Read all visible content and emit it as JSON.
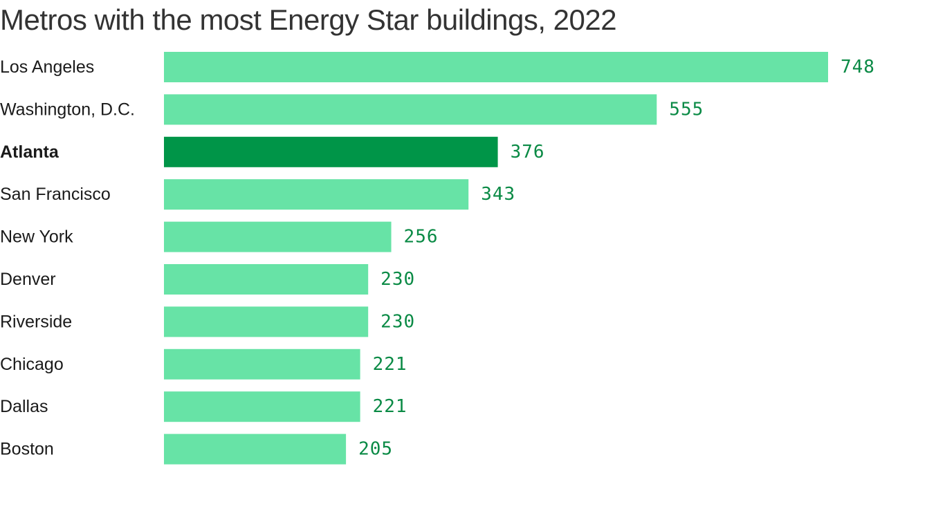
{
  "chart_data": {
    "type": "bar",
    "orientation": "horizontal",
    "title": "Metros with the most Energy Star buildings, 2022",
    "categories": [
      "Los Angeles",
      "Washington, D.C.",
      "Atlanta",
      "San Francisco",
      "New York",
      "Denver",
      "Riverside",
      "Chicago",
      "Dallas",
      "Boston"
    ],
    "values": [
      748,
      555,
      376,
      343,
      256,
      230,
      230,
      221,
      221,
      205
    ],
    "highlight": "Atlanta",
    "xlim": [
      0,
      748
    ],
    "grid": false,
    "data_labels": true
  },
  "colors": {
    "bar": "#67e3a6",
    "bar_highlight": "#009548",
    "value_label": "#0a8a45",
    "category_label": "#1a1a1a",
    "title": "#333333"
  }
}
